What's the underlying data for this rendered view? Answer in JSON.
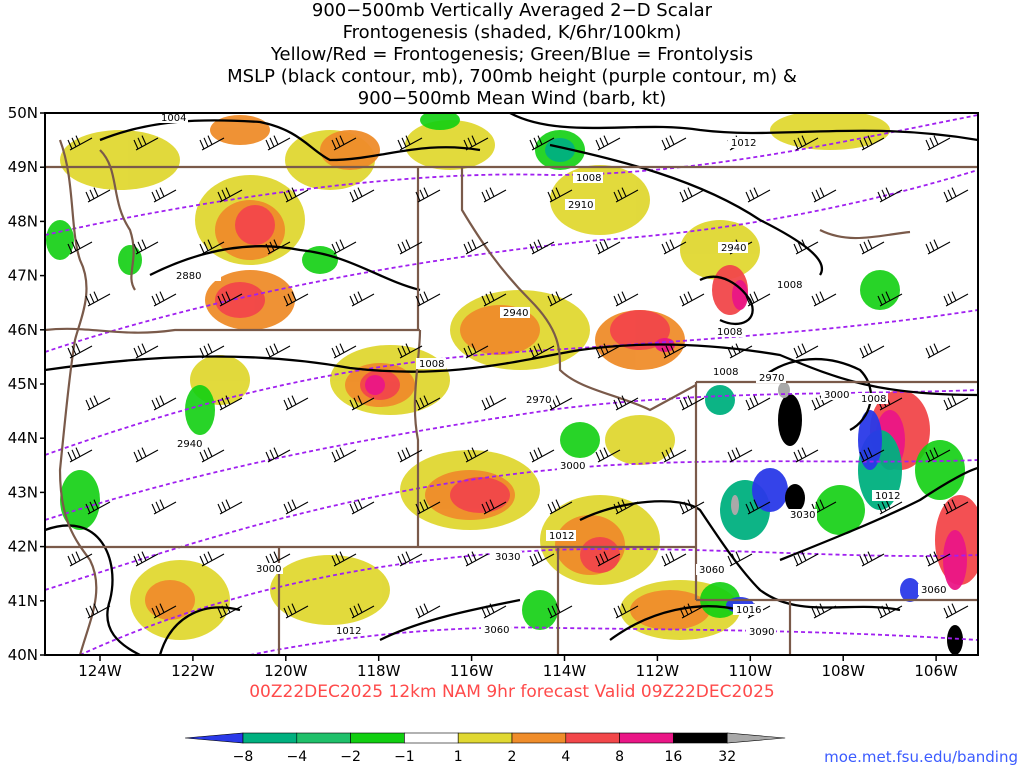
{
  "title": {
    "lines": [
      "900−500mb Vertically Averaged 2−D Scalar",
      "Frontogenesis (shaded, K/6hr/100km)",
      "Yellow/Red = Frontogenesis;  Green/Blue = Frontolysis",
      "MSLP (black contour, mb), 700mb height (purple contour, m) &",
      "900−500mb Mean Wind (barb, kt)"
    ]
  },
  "map": {
    "lat_labels": [
      "50N",
      "49N",
      "48N",
      "47N",
      "46N",
      "45N",
      "44N",
      "43N",
      "42N",
      "41N",
      "40N"
    ],
    "lon_labels": [
      "124W",
      "122W",
      "120W",
      "118W",
      "116W",
      "114W",
      "112W",
      "110W",
      "108W",
      "106W"
    ],
    "mslp_labels": [
      "1004",
      "1008",
      "1008",
      "1008",
      "1008",
      "1012",
      "1012",
      "1012",
      "1016",
      "1008",
      "1008",
      "1012"
    ],
    "height_labels": [
      "2880",
      "2910",
      "2940",
      "2940",
      "2940",
      "2970",
      "2970",
      "3000",
      "3000",
      "3000",
      "3030",
      "3030",
      "3060",
      "3060",
      "3060",
      "3090"
    ],
    "colors": {
      "mslp": "#000000",
      "height": "#a020f0",
      "borders": "#7a5a4a",
      "frame": "#000000"
    }
  },
  "colorbar": {
    "labels": [
      "−8",
      "−4",
      "−2",
      "−1",
      "1",
      "2",
      "4",
      "8",
      "16",
      "32"
    ],
    "colors": [
      "#2a39e8",
      "#00b07f",
      "#1fc06a",
      "#11cf11",
      "#ffffff",
      "#e0d832",
      "#ef8d2b",
      "#f2474a",
      "#ea1686",
      "#000000",
      "#a9a9a9"
    ]
  },
  "footer": "00Z22DEC2025  12km NAM  9hr forecast  Valid  09Z22DEC2025",
  "credit": "moe.met.fsu.edu/banding"
}
